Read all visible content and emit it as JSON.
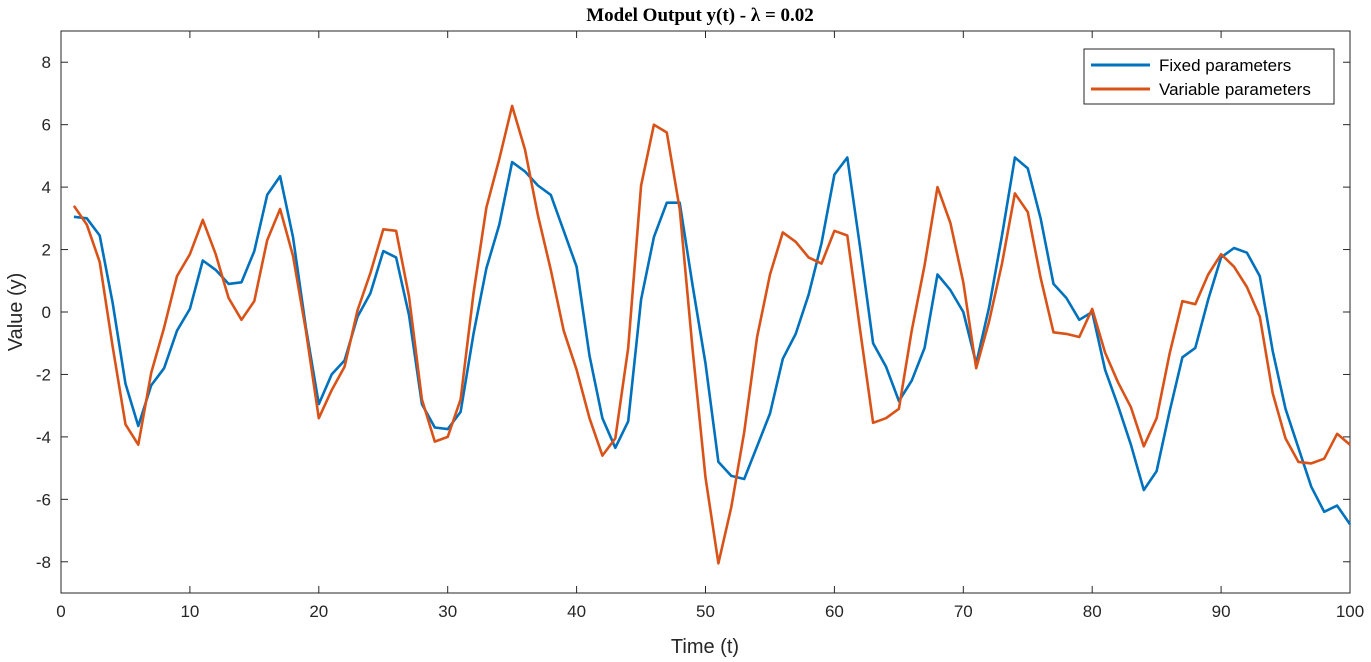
{
  "chart_data": {
    "type": "line",
    "title": "Model Output y(t) - λ = 0.02",
    "xlabel": "Time (t)",
    "ylabel": "Value (y)",
    "xlim": [
      0,
      100
    ],
    "ylim": [
      -9,
      9
    ],
    "xticks": [
      0,
      10,
      20,
      30,
      40,
      50,
      60,
      70,
      80,
      90,
      100
    ],
    "yticks": [
      -8,
      -6,
      -4,
      -2,
      0,
      2,
      4,
      6,
      8
    ],
    "grid": false,
    "legend_position": "top-right",
    "x": [
      1,
      2,
      3,
      4,
      5,
      6,
      7,
      8,
      9,
      10,
      11,
      12,
      13,
      14,
      15,
      16,
      17,
      18,
      19,
      20,
      21,
      22,
      23,
      24,
      25,
      26,
      27,
      28,
      29,
      30,
      31,
      32,
      33,
      34,
      35,
      36,
      37,
      38,
      39,
      40,
      41,
      42,
      43,
      44,
      45,
      46,
      47,
      48,
      49,
      50,
      51,
      52,
      53,
      54,
      55,
      56,
      57,
      58,
      59,
      60,
      61,
      62,
      63,
      64,
      65,
      66,
      67,
      68,
      69,
      70,
      71,
      72,
      73,
      74,
      75,
      76,
      77,
      78,
      79,
      80,
      81,
      82,
      83,
      84,
      85,
      86,
      87,
      88,
      89,
      90,
      91,
      92,
      93,
      94,
      95,
      96,
      97,
      98,
      99,
      100
    ],
    "series": [
      {
        "name": "Fixed parameters",
        "color": "#0072BD",
        "values": [
          3.05,
          3.0,
          2.45,
          0.3,
          -2.3,
          -3.65,
          -2.35,
          -1.8,
          -0.6,
          0.1,
          1.65,
          1.35,
          0.9,
          0.95,
          1.95,
          3.75,
          4.35,
          2.4,
          -0.5,
          -2.95,
          -2.0,
          -1.55,
          -0.15,
          0.6,
          1.95,
          1.75,
          -0.1,
          -2.95,
          -3.7,
          -3.75,
          -3.2,
          -0.7,
          1.4,
          2.8,
          4.8,
          4.5,
          4.05,
          3.75,
          2.6,
          1.45,
          -1.4,
          -3.4,
          -4.35,
          -3.5,
          0.4,
          2.4,
          3.5,
          3.5,
          0.85,
          -1.65,
          -4.8,
          -5.25,
          -5.35,
          -4.3,
          -3.25,
          -1.5,
          -0.7,
          0.55,
          2.2,
          4.4,
          4.95,
          2.05,
          -1.0,
          -1.75,
          -2.85,
          -2.2,
          -1.15,
          1.2,
          0.7,
          0.0,
          -1.65,
          0.15,
          2.45,
          4.95,
          4.6,
          3.0,
          0.9,
          0.45,
          -0.25,
          0.0,
          -1.85,
          -3.0,
          -4.25,
          -5.7,
          -5.1,
          -3.2,
          -1.45,
          -1.15,
          0.4,
          1.75,
          2.05,
          1.9,
          1.15,
          -1.25,
          -3.1,
          -4.35,
          -5.6,
          -6.4,
          -6.2,
          -6.8
        ]
      },
      {
        "name": "Variable parameters",
        "color": "#D95319",
        "values": [
          3.4,
          2.8,
          1.6,
          -1.1,
          -3.6,
          -4.25,
          -1.95,
          -0.5,
          1.15,
          1.85,
          2.95,
          1.85,
          0.45,
          -0.25,
          0.35,
          2.3,
          3.3,
          1.8,
          -0.6,
          -3.4,
          -2.5,
          -1.75,
          0.05,
          1.25,
          2.65,
          2.6,
          0.5,
          -2.8,
          -4.15,
          -4.0,
          -2.8,
          0.6,
          3.35,
          4.9,
          6.6,
          5.2,
          3.1,
          1.35,
          -0.6,
          -1.85,
          -3.4,
          -4.6,
          -4.05,
          -1.15,
          4.05,
          6.0,
          5.75,
          3.3,
          -1.2,
          -5.3,
          -8.05,
          -6.25,
          -3.85,
          -0.8,
          1.2,
          2.55,
          2.25,
          1.75,
          1.55,
          2.6,
          2.45,
          -0.6,
          -3.55,
          -3.4,
          -3.1,
          -0.6,
          1.5,
          4.0,
          2.85,
          0.95,
          -1.8,
          -0.3,
          1.55,
          3.8,
          3.2,
          1.1,
          -0.65,
          -0.7,
          -0.8,
          0.1,
          -1.3,
          -2.25,
          -3.05,
          -4.3,
          -3.4,
          -1.35,
          0.35,
          0.25,
          1.2,
          1.85,
          1.45,
          0.8,
          -0.15,
          -2.6,
          -4.05,
          -4.8,
          -4.85,
          -4.7,
          -3.9,
          -4.25
        ]
      }
    ]
  }
}
